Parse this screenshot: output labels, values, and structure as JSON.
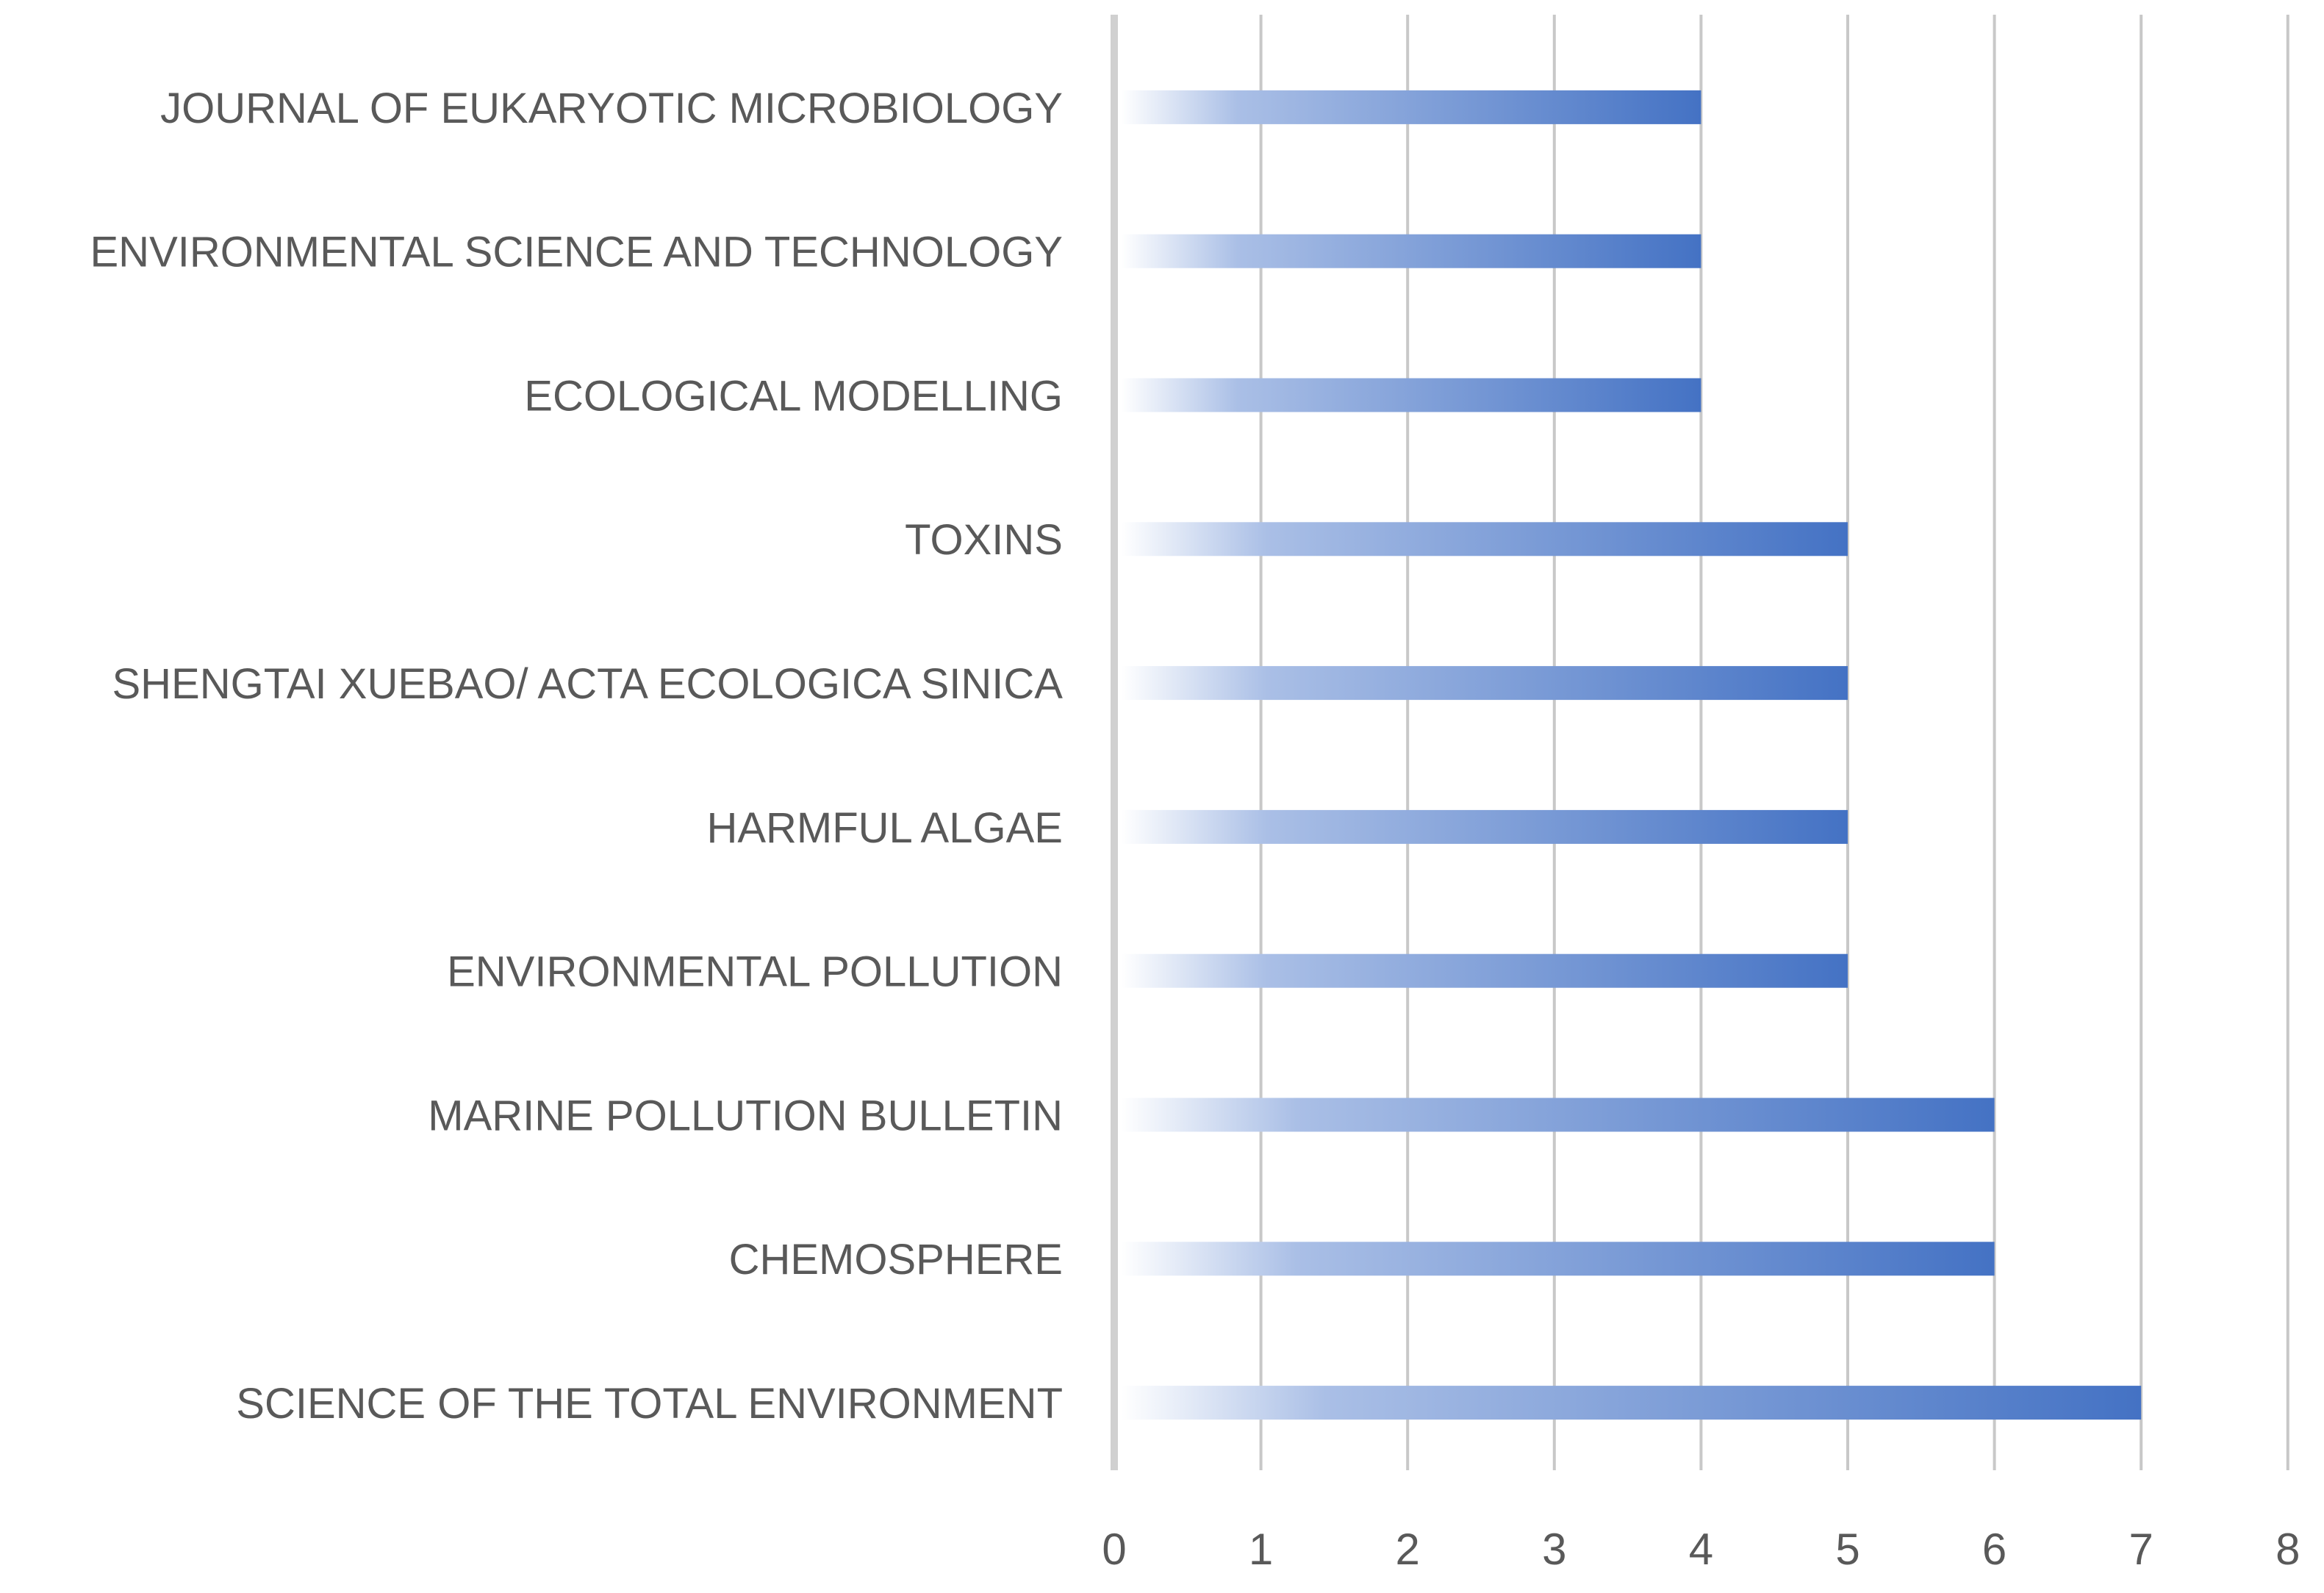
{
  "chart_data": {
    "type": "bar",
    "orientation": "horizontal",
    "title": "",
    "xlabel": "",
    "ylabel": "",
    "categories": [
      "JOURNAL OF EUKARYOTIC MICROBIOLOGY",
      "ENVIRONMENTAL SCIENCE AND TECHNOLOGY",
      "ECOLOGICAL MODELLING",
      "TOXINS",
      "SHENGTAI XUEBAO/ ACTA ECOLOGICA SINICA",
      "HARMFUL ALGAE",
      "ENVIRONMENTAL POLLUTION",
      "MARINE POLLUTION BULLETIN",
      "CHEMOSPHERE",
      "SCIENCE OF THE TOTAL ENVIRONMENT"
    ],
    "values": [
      4,
      4,
      4,
      5,
      5,
      5,
      5,
      6,
      6,
      7
    ],
    "xlim": [
      0,
      8
    ],
    "x_ticks": [
      "0",
      "1",
      "2",
      "3",
      "4",
      "5",
      "6",
      "7",
      "8"
    ],
    "grid": "vertical",
    "legend": "none",
    "colors": {
      "bar": "#4472C4",
      "bar_fade": "#ffffff",
      "grid": "#c8c8c8",
      "axis": "#d0d0d0",
      "text": "#595959"
    }
  }
}
